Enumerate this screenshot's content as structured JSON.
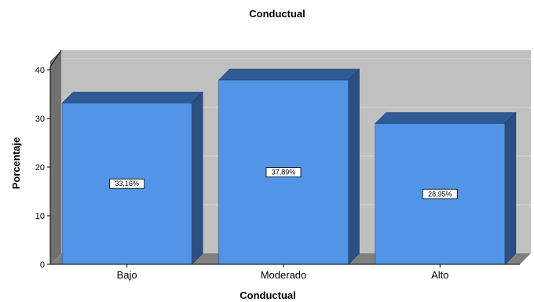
{
  "chart_data": {
    "type": "bar",
    "title": "Conductual",
    "xlabel": "Conductual",
    "ylabel": "Porcentaje",
    "categories": [
      "Bajo",
      "Moderado",
      "Alto"
    ],
    "values": [
      33.16,
      37.89,
      28.95
    ],
    "data_labels": [
      "33,16%",
      "37,89%",
      "28,95%"
    ],
    "yticks": [
      "0",
      "10",
      "20",
      "30",
      "40"
    ],
    "ylim": [
      0,
      40
    ],
    "grid": true,
    "legend": "none",
    "style": "3d",
    "colors": {
      "bar_front": "#5294E6",
      "bar_top": "#2F5A96",
      "bar_side": "#2C4F82",
      "back_wall": "#C0C0C0",
      "side_wall": "#707070",
      "floor": "#808080",
      "gridline": "#D8D8D8"
    }
  }
}
